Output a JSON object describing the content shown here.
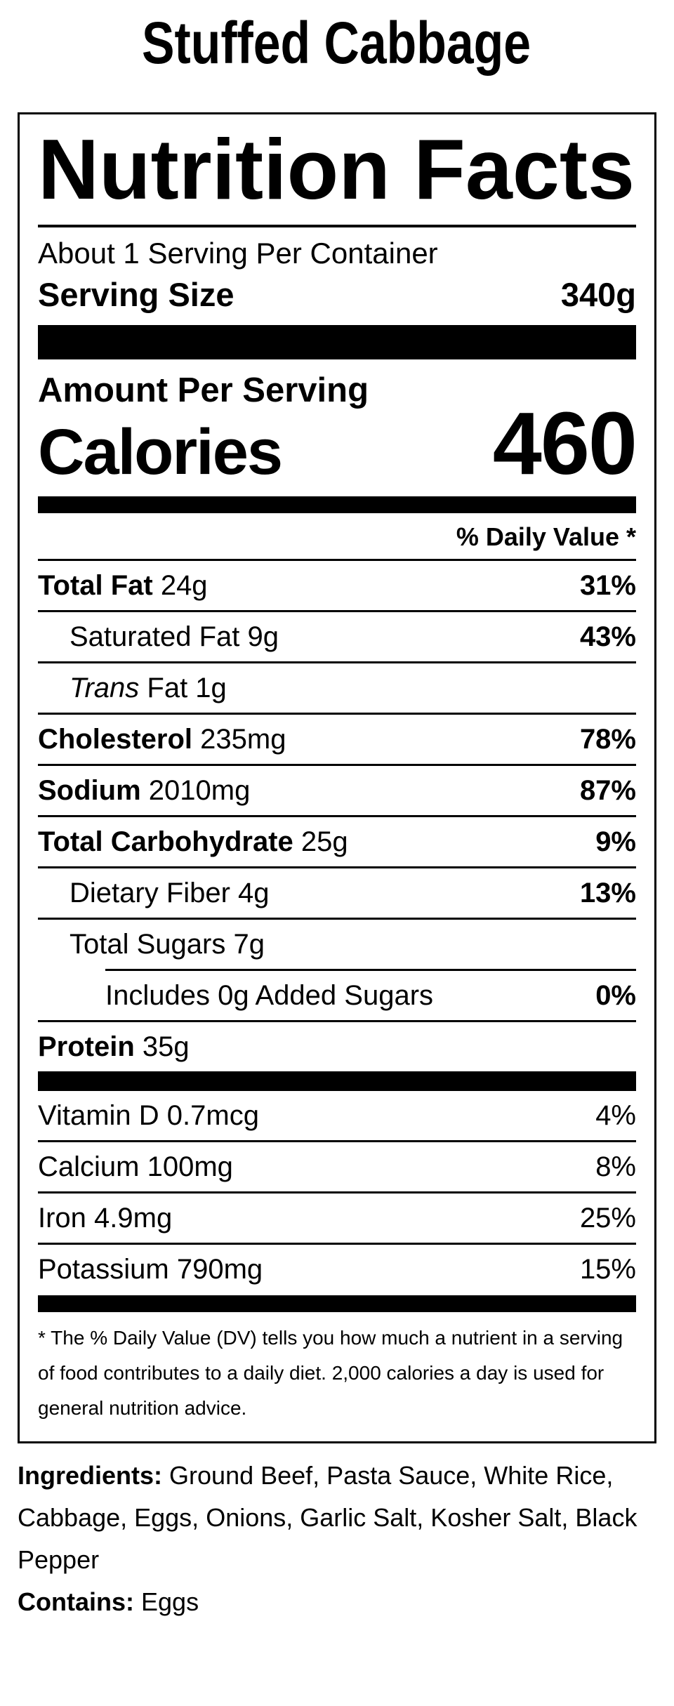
{
  "page": {
    "title": "Stuffed Cabbage"
  },
  "colors": {
    "text": "#000000",
    "background": "#ffffff"
  },
  "label": {
    "title": "Nutrition Facts",
    "servings_per_container": "About 1 Serving Per Container",
    "serving_size_label": "Serving Size",
    "serving_size_value": "340g",
    "amount_per_serving_label": "Amount Per Serving",
    "calories_label": "Calories",
    "calories_value": "460",
    "daily_value_header": "% Daily Value *",
    "nutrients": [
      {
        "text_bold": "Total Fat",
        "text": " 24g",
        "dv": "31%"
      },
      {
        "text": "Saturated Fat 9g",
        "dv": "43%"
      },
      {
        "text_italic": "Trans",
        "text": " Fat 1g",
        "dv": ""
      },
      {
        "text_bold": "Cholesterol",
        "text": " 235mg",
        "dv": "78%"
      },
      {
        "text_bold": "Sodium",
        "text": " 2010mg",
        "dv": "87%"
      },
      {
        "text_bold": "Total Carbohydrate",
        "text": " 25g",
        "dv": "9%"
      },
      {
        "text": "Dietary Fiber 4g",
        "dv": "13%"
      },
      {
        "text": "Total Sugars 7g",
        "dv": ""
      },
      {
        "text": "Includes 0g Added Sugars",
        "dv": "0%"
      },
      {
        "text_bold": "Protein",
        "text": " 35g",
        "dv": ""
      }
    ],
    "vitamins": [
      {
        "text": "Vitamin D 0.7mcg",
        "dv": "4%"
      },
      {
        "text": "Calcium 100mg",
        "dv": "8%"
      },
      {
        "text": "Iron 4.9mg",
        "dv": "25%"
      },
      {
        "text": "Potassium 790mg",
        "dv": "15%"
      }
    ],
    "footnote": "* The % Daily Value (DV) tells you how much a nutrient in a serving of food contributes to a daily diet. 2,000 calories a day is used for general nutrition advice."
  },
  "ingredients": {
    "label": "Ingredients:",
    "text": "Ground Beef, Pasta Sauce, White Rice, Cabbage, Eggs, Onions, Garlic Salt, Kosher Salt, Black Pepper"
  },
  "contains": {
    "label": "Contains:",
    "text": "Eggs"
  }
}
